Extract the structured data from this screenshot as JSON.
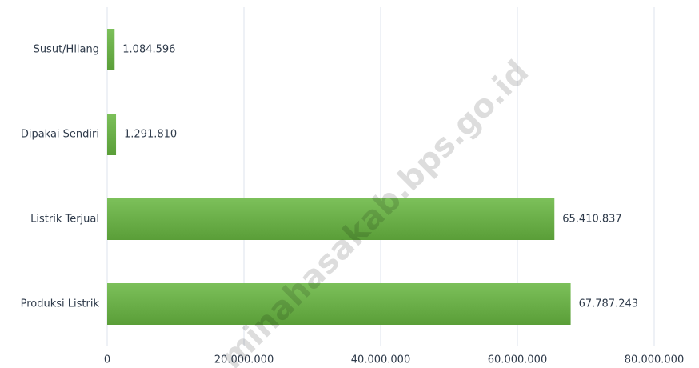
{
  "chart_data": {
    "type": "barh",
    "categories": [
      "Susut/Hilang",
      "Dipakai Sendiri",
      "Listrik Terjual",
      "Produksi Listrik"
    ],
    "values": [
      1084596,
      1291810,
      65410837,
      67787243
    ],
    "value_labels": [
      "1.084.596",
      "1.291.810",
      "65.410.837",
      "67.787.243"
    ],
    "color": "#6aae45",
    "xlim": [
      0,
      80000000
    ],
    "xticks": [
      0,
      {
        "value": 20000000,
        "label": "20.000.000"
      },
      {
        "value": 40000000,
        "label": "40.000.000"
      },
      {
        "value": 60000000,
        "label": "60.000.000"
      },
      {
        "value": 80000000,
        "label": "80.000.000"
      }
    ],
    "grid": true,
    "watermark": "minahasakab.bps.go.id"
  }
}
